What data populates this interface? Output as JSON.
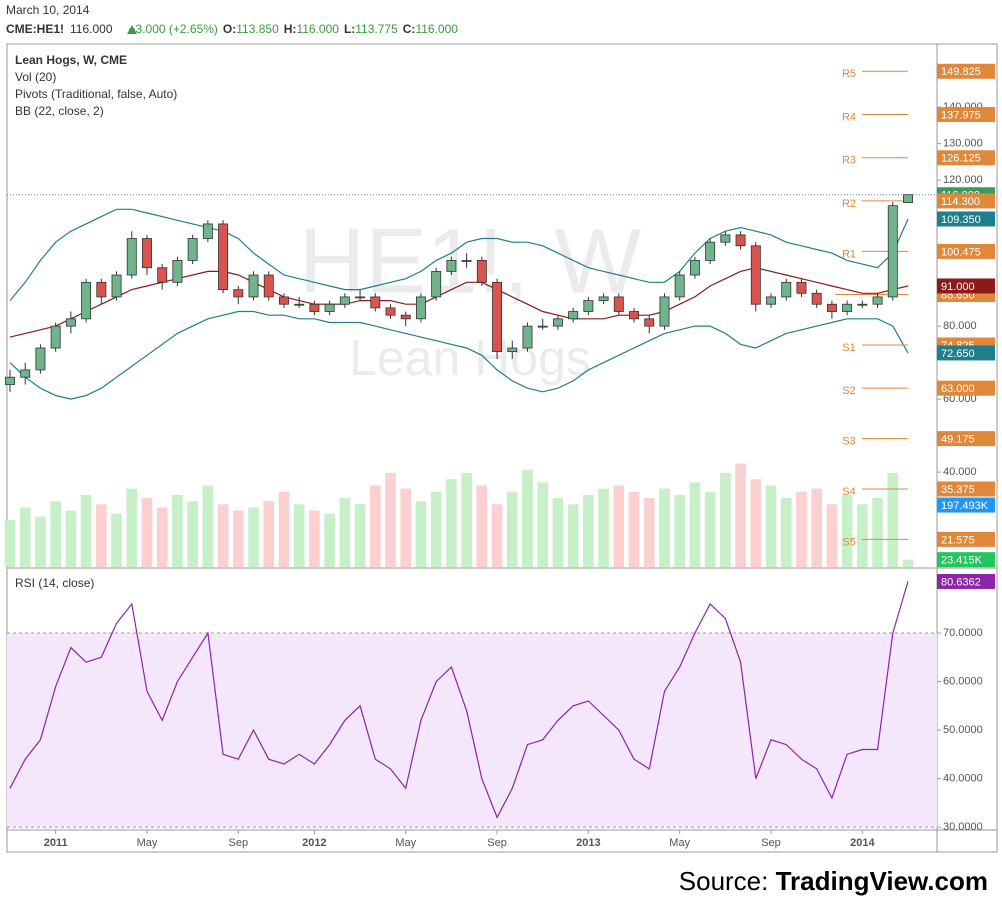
{
  "header": {
    "date": "March 10, 2014",
    "symbol": "CME:HE1!",
    "last": "116.000",
    "change": "+3.000 (+2.65%)",
    "open_key": "O:",
    "open": "113.850",
    "high_key": "H:",
    "high": "116.000",
    "low_key": "L:",
    "low": "113.775",
    "close_key": "C:",
    "close": "116.000"
  },
  "legend": [
    "Lean Hogs, W, CME",
    "Vol (20)",
    "Pivots (Traditional, false, Auto)",
    "BB (22, close, 2)"
  ],
  "watermark": {
    "symbol": "HE1!, W",
    "name": "Lean Hogs"
  },
  "source": {
    "prefix": "Source: ",
    "site": "TradingView.com"
  },
  "chart_data": [
    {
      "type": "candlestick",
      "categories": [
        null,
        null,
        null,
        "2011",
        null,
        null,
        null,
        null,
        null,
        "May",
        null,
        null,
        null,
        null,
        null,
        "Sep",
        null,
        null,
        null,
        null,
        "2012",
        null,
        null,
        null,
        null,
        null,
        "May",
        null,
        null,
        null,
        null,
        null,
        "Sep",
        null,
        null,
        null,
        null,
        null,
        "2013",
        null,
        null,
        null,
        null,
        null,
        "May",
        null,
        null,
        null,
        null,
        null,
        "Sep",
        null,
        null,
        null,
        null,
        null,
        "2014",
        null,
        null,
        null
      ],
      "open": [
        64,
        66,
        68,
        74,
        80,
        82,
        92,
        88,
        94,
        104,
        96,
        92,
        98,
        104,
        108,
        90,
        88,
        94,
        88,
        86,
        86,
        84,
        86,
        88,
        88,
        85,
        83,
        82,
        88,
        95,
        98,
        98,
        92,
        73,
        74,
        80,
        80,
        82,
        84,
        87,
        88,
        84,
        82,
        80,
        88,
        94,
        98,
        103,
        105,
        102,
        86,
        88,
        92,
        89,
        86,
        84,
        86,
        86,
        88,
        113.85
      ],
      "high": [
        68,
        70,
        75,
        81,
        84,
        93,
        93,
        95,
        106,
        105,
        97,
        99,
        105,
        109,
        109,
        91,
        95,
        95,
        89,
        88,
        87,
        87,
        89,
        90,
        89,
        86,
        84,
        89,
        96,
        99,
        100,
        99,
        93,
        76,
        81,
        82,
        83,
        85,
        88,
        89,
        89,
        85,
        83,
        89,
        95,
        99,
        104,
        106,
        106,
        103,
        89,
        93,
        93,
        90,
        87,
        87,
        87,
        89,
        114,
        116
      ],
      "low": [
        62,
        64,
        67,
        73,
        78,
        81,
        86,
        87,
        93,
        94,
        90,
        91,
        97,
        103,
        89,
        86,
        87,
        87,
        85,
        85,
        83,
        83,
        85,
        87,
        84,
        82,
        80,
        81,
        87,
        94,
        96,
        91,
        71,
        71,
        73,
        79,
        79,
        81,
        83,
        86,
        83,
        81,
        78,
        79,
        87,
        93,
        97,
        102,
        101,
        84,
        85,
        87,
        88,
        85,
        82,
        83,
        85,
        85,
        87,
        113.775
      ],
      "close": [
        66,
        68,
        74,
        80,
        82,
        92,
        88,
        94,
        104,
        96,
        92,
        98,
        104,
        108,
        90,
        88,
        94,
        88,
        86,
        86,
        84,
        86,
        88,
        88,
        85,
        83,
        82,
        88,
        95,
        98,
        98,
        92,
        73,
        74,
        80,
        80,
        82,
        84,
        87,
        88,
        84,
        82,
        80,
        88,
        94,
        98,
        103,
        105,
        102,
        86,
        88,
        92,
        89,
        86,
        84,
        86,
        86,
        88,
        113,
        116
      ],
      "close_label": "116.000",
      "up_color": "#6fb48a",
      "down_color": "#d9534f",
      "label_color": "#3c9a5f",
      "ylim": [
        14,
        157.3
      ],
      "yticks": [
        {
          "value": 140,
          "label": "140.000"
        },
        {
          "value": 130,
          "label": "130.000"
        },
        {
          "value": 120,
          "label": "120.000"
        },
        {
          "value": 80,
          "label": "80.000"
        },
        {
          "value": 60,
          "label": "60.000"
        },
        {
          "value": 40,
          "label": "40.000"
        }
      ],
      "volume": {
        "values": [
          150,
          190,
          160,
          210,
          180,
          230,
          200,
          170,
          250,
          220,
          190,
          230,
          210,
          260,
          200,
          180,
          190,
          210,
          240,
          200,
          180,
          170,
          220,
          200,
          260,
          300,
          250,
          210,
          240,
          280,
          300,
          260,
          200,
          240,
          310,
          270,
          220,
          200,
          230,
          250,
          260,
          240,
          220,
          250,
          230,
          270,
          240,
          300,
          330,
          280,
          260,
          220,
          240,
          250,
          200,
          230,
          200,
          220,
          300,
          23.415
        ],
        "last_label": "23.415K",
        "vlim": [
          0,
          405
        ],
        "up_color": "#c8f0c8",
        "down_color": "#fcd0d0",
        "ma": {
          "value": 197.493,
          "label": "197.493K",
          "color": "#2196f3"
        }
      },
      "bb": [
        {
          "values": [
            87,
            92,
            98,
            103,
            106,
            108,
            110,
            112,
            112,
            111,
            110,
            109,
            108,
            107,
            106,
            104,
            100,
            97,
            94,
            93,
            92,
            91,
            90,
            90,
            91,
            92,
            93,
            95,
            98,
            100,
            103,
            104,
            104,
            103,
            103,
            102,
            100,
            98,
            96,
            95,
            94,
            93,
            92,
            92,
            95,
            100,
            104,
            106,
            107,
            106,
            105,
            103,
            102,
            101,
            100,
            98,
            97,
            96,
            100,
            109.35
          ],
          "last_label": "109.350",
          "color": "#1f7f8c"
        },
        {
          "values": [
            77,
            78,
            79,
            80,
            82,
            84,
            86,
            88,
            90,
            91,
            92,
            93,
            94,
            95,
            95,
            94,
            92,
            90,
            88,
            87,
            86,
            86,
            86,
            87,
            87,
            87,
            86,
            86,
            88,
            90,
            92,
            92,
            90,
            88,
            86,
            84,
            83,
            82,
            82,
            82,
            83,
            83,
            83,
            84,
            86,
            88,
            91,
            93,
            95,
            96,
            95,
            94,
            93,
            92,
            91,
            90,
            89,
            89,
            90,
            91
          ],
          "last_label": "91.000",
          "color": "#8b1a1a"
        },
        {
          "values": [
            70,
            66,
            63,
            61,
            60,
            61,
            63,
            66,
            69,
            72,
            75,
            78,
            80,
            82,
            83,
            84,
            84,
            83,
            83,
            82,
            82,
            81,
            81,
            81,
            80,
            79,
            78,
            77,
            76,
            75,
            74,
            72,
            68,
            65,
            63,
            62,
            63,
            65,
            68,
            70,
            72,
            74,
            76,
            78,
            79,
            80,
            80,
            78,
            75,
            74,
            76,
            78,
            79,
            80,
            81,
            82,
            82,
            82,
            80,
            72.65
          ],
          "last_label": "72.650",
          "color": "#1f7f8c"
        }
      ],
      "pivots": {
        "names": [
          "R5",
          "R4",
          "R3",
          "R2",
          "R1",
          "S1",
          "S2",
          "S3",
          "S4",
          "S5"
        ],
        "values": [
          149.825,
          137.975,
          126.125,
          114.3,
          100.475,
          74.825,
          63,
          49.175,
          35.375,
          21.575
        ],
        "value_labels": [
          "149.825",
          "137.975",
          "126.125",
          "114.300",
          "100.475",
          "74.825",
          "63.000",
          "49.175",
          "35.375",
          "21.575"
        ],
        "color": "#e0883a"
      },
      "pivot_point": {
        "value": 88.65,
        "label": "88.650"
      }
    },
    {
      "type": "line",
      "title": "RSI (14, close)",
      "values": [
        38,
        44,
        48,
        59,
        67,
        64,
        65,
        72,
        76,
        58,
        52,
        60,
        65,
        70,
        45,
        44,
        50,
        44,
        43,
        45,
        43,
        47,
        52,
        55,
        44,
        42,
        38,
        52,
        60,
        63,
        54,
        40,
        32,
        38,
        47,
        48,
        52,
        55,
        56,
        53,
        50,
        44,
        42,
        58,
        63,
        70,
        76,
        73,
        64,
        40,
        48,
        47,
        44,
        42,
        36,
        45,
        46,
        46,
        70,
        80.6362
      ],
      "last_label": "80.6362",
      "color": "#8e24aa",
      "ylim": [
        29.4,
        83
      ],
      "yticks": [
        {
          "value": 70,
          "label": "70.0000"
        },
        {
          "value": 60,
          "label": "60.0000"
        },
        {
          "value": 50,
          "label": "50.0000"
        },
        {
          "value": 40,
          "label": "40.0000"
        },
        {
          "value": 30,
          "label": "30.0000"
        }
      ],
      "band": [
        30,
        70
      ],
      "band_color": "#f4e6fb"
    }
  ]
}
